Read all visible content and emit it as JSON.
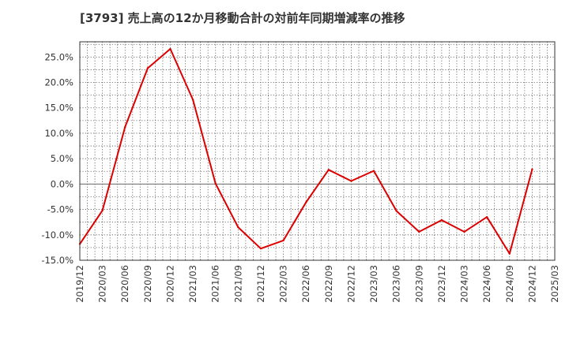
{
  "chart_data": {
    "type": "line",
    "title": "[3793]  売上高の12か月移動合計の対前年同期増減率の推移",
    "xlabel": "",
    "ylabel": "",
    "ylim": [
      -15,
      28
    ],
    "y_ticks": [
      -15,
      -10,
      -5,
      0,
      5,
      10,
      15,
      20,
      25
    ],
    "y_tick_labels": [
      "-15.0%",
      "-10.0%",
      "-5.0%",
      "0.0%",
      "5.0%",
      "10.0%",
      "15.0%",
      "20.0%",
      "25.0%"
    ],
    "x_tick_labels": [
      "2019/12",
      "2020/03",
      "2020/06",
      "2020/09",
      "2020/12",
      "2021/03",
      "2021/06",
      "2021/09",
      "2021/12",
      "2022/03",
      "2022/06",
      "2022/09",
      "2022/12",
      "2023/03",
      "2023/06",
      "2023/09",
      "2023/12",
      "2024/03",
      "2024/06",
      "2024/09",
      "2024/12",
      "2025/03"
    ],
    "series": [
      {
        "name": "売上高の12か月移動合計の対前年同期増減率",
        "color": "#dd0000",
        "x": [
          "2019/12",
          "2020/03",
          "2020/06",
          "2020/09",
          "2020/12",
          "2021/03",
          "2021/06",
          "2021/09",
          "2021/12",
          "2022/03",
          "2022/06",
          "2022/09",
          "2022/12",
          "2023/03",
          "2023/06",
          "2023/09",
          "2023/12",
          "2024/03",
          "2024/06",
          "2024/09",
          "2024/12"
        ],
        "values": [
          -11.8,
          -5.2,
          11.2,
          22.8,
          26.6,
          16.6,
          0.1,
          -8.5,
          -12.7,
          -11.1,
          -3.6,
          2.8,
          0.6,
          2.6,
          -5.3,
          -9.4,
          -7.1,
          -9.4,
          -6.5,
          -13.7,
          2.9
        ]
      }
    ],
    "grid": true,
    "legend": "none"
  }
}
